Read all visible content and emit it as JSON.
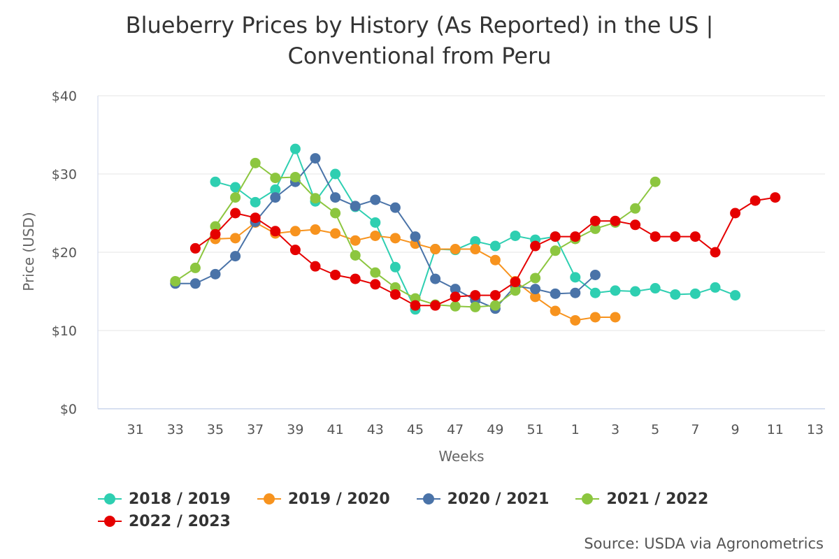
{
  "chart_data": {
    "type": "line",
    "title": [
      "Blueberry Prices by History (As Reported) in the US |",
      "Conventional from Peru"
    ],
    "xlabel": "Weeks",
    "ylabel": "Price (USD)",
    "ylim": [
      0,
      40
    ],
    "yticks": [
      "$0",
      "$10",
      "$20",
      "$30",
      "$40"
    ],
    "yticks_values": [
      0,
      10,
      20,
      30,
      40
    ],
    "x_positions": [
      30,
      31,
      32,
      33,
      34,
      35,
      36,
      37,
      38,
      39,
      40,
      41,
      42,
      43,
      44,
      45,
      46,
      47,
      48,
      49,
      50,
      51,
      52,
      1,
      2,
      3,
      4,
      5,
      6,
      7,
      8,
      9,
      10,
      11,
      12,
      13
    ],
    "xtick_labels": [
      "31",
      "33",
      "35",
      "37",
      "39",
      "41",
      "43",
      "45",
      "47",
      "49",
      "51",
      "1",
      "3",
      "5",
      "7",
      "9",
      "11",
      "13"
    ],
    "xtick_index": [
      1,
      3,
      5,
      7,
      9,
      11,
      13,
      15,
      17,
      19,
      21,
      23,
      25,
      27,
      29,
      31,
      33,
      35
    ],
    "series": [
      {
        "name": "2018 / 2019",
        "color": "#2ecfb1",
        "points": [
          [
            5,
            29
          ],
          [
            6,
            28.3
          ],
          [
            7,
            26.4
          ],
          [
            8,
            28
          ],
          [
            9,
            33.2
          ],
          [
            10,
            26.5
          ],
          [
            11,
            30
          ],
          [
            12,
            25.8
          ],
          [
            13,
            23.8
          ],
          [
            14,
            18.1
          ],
          [
            15,
            12.7
          ],
          [
            16,
            20.4
          ],
          [
            17,
            20.3
          ],
          [
            18,
            21.4
          ],
          [
            19,
            20.8
          ],
          [
            20,
            22.1
          ],
          [
            21,
            21.6
          ],
          [
            22,
            22
          ],
          [
            23,
            16.8
          ],
          [
            24,
            14.8
          ],
          [
            25,
            15.1
          ],
          [
            26,
            15
          ],
          [
            27,
            15.4
          ],
          [
            28,
            14.6
          ],
          [
            29,
            14.7
          ],
          [
            30,
            15.5
          ],
          [
            31,
            14.5
          ]
        ]
      },
      {
        "name": "2019 / 2020",
        "color": "#f7931e",
        "points": [
          [
            5,
            21.7
          ],
          [
            6,
            21.8
          ],
          [
            7,
            23.8
          ],
          [
            8,
            22.4
          ],
          [
            9,
            22.7
          ],
          [
            10,
            22.9
          ],
          [
            11,
            22.4
          ],
          [
            12,
            21.5
          ],
          [
            13,
            22.1
          ],
          [
            14,
            21.8
          ],
          [
            15,
            21.1
          ],
          [
            16,
            20.4
          ],
          [
            17,
            20.4
          ],
          [
            18,
            20.4
          ],
          [
            19,
            19
          ],
          [
            20,
            16.3
          ],
          [
            21,
            14.3
          ],
          [
            22,
            12.5
          ],
          [
            23,
            11.3
          ],
          [
            24,
            11.7
          ],
          [
            25,
            11.7
          ]
        ]
      },
      {
        "name": "2020 / 2021",
        "color": "#4a73a8",
        "points": [
          [
            3,
            16
          ],
          [
            4,
            16
          ],
          [
            5,
            17.2
          ],
          [
            6,
            19.5
          ],
          [
            7,
            23.9
          ],
          [
            8,
            27
          ],
          [
            9,
            29
          ],
          [
            10,
            32
          ],
          [
            11,
            27
          ],
          [
            12,
            25.9
          ],
          [
            13,
            26.7
          ],
          [
            14,
            25.7
          ],
          [
            15,
            22
          ],
          [
            16,
            16.6
          ],
          [
            17,
            15.3
          ],
          [
            18,
            13.9
          ],
          [
            19,
            12.8
          ],
          [
            20,
            15.7
          ],
          [
            21,
            15.3
          ],
          [
            22,
            14.7
          ],
          [
            23,
            14.8
          ],
          [
            24,
            17.1
          ]
        ]
      },
      {
        "name": "2021 / 2022",
        "color": "#8cc63f",
        "points": [
          [
            3,
            16.3
          ],
          [
            4,
            18
          ],
          [
            5,
            23.3
          ],
          [
            6,
            27
          ],
          [
            7,
            31.4
          ],
          [
            8,
            29.5
          ],
          [
            9,
            29.6
          ],
          [
            10,
            26.9
          ],
          [
            11,
            25
          ],
          [
            12,
            19.6
          ],
          [
            13,
            17.4
          ],
          [
            14,
            15.5
          ],
          [
            15,
            14.1
          ],
          [
            16,
            13.3
          ],
          [
            17,
            13.1
          ],
          [
            18,
            13
          ],
          [
            19,
            13.2
          ],
          [
            20,
            15.1
          ],
          [
            21,
            16.7
          ],
          [
            22,
            20.2
          ],
          [
            23,
            21.7
          ],
          [
            24,
            23
          ],
          [
            25,
            23.8
          ],
          [
            26,
            25.6
          ],
          [
            27,
            29
          ]
        ]
      },
      {
        "name": "2022 / 2023",
        "color": "#e50000",
        "points": [
          [
            4,
            20.5
          ],
          [
            5,
            22.3
          ],
          [
            6,
            25
          ],
          [
            7,
            24.4
          ],
          [
            8,
            22.7
          ],
          [
            9,
            20.3
          ],
          [
            10,
            18.2
          ],
          [
            11,
            17.1
          ],
          [
            12,
            16.6
          ],
          [
            13,
            15.9
          ],
          [
            14,
            14.6
          ],
          [
            15,
            13.2
          ],
          [
            16,
            13.2
          ],
          [
            17,
            14.3
          ],
          [
            18,
            14.5
          ],
          [
            19,
            14.5
          ],
          [
            20,
            16.2
          ],
          [
            21,
            20.8
          ],
          [
            22,
            22
          ],
          [
            23,
            22
          ],
          [
            24,
            24
          ],
          [
            25,
            24
          ],
          [
            26,
            23.5
          ],
          [
            27,
            22
          ],
          [
            28,
            22
          ],
          [
            29,
            22
          ],
          [
            30,
            20
          ],
          [
            31,
            25
          ],
          [
            32,
            26.6
          ],
          [
            33,
            27
          ]
        ]
      }
    ],
    "legend_position": "bottom-left",
    "source": "Source: USDA via Agronometrics"
  }
}
